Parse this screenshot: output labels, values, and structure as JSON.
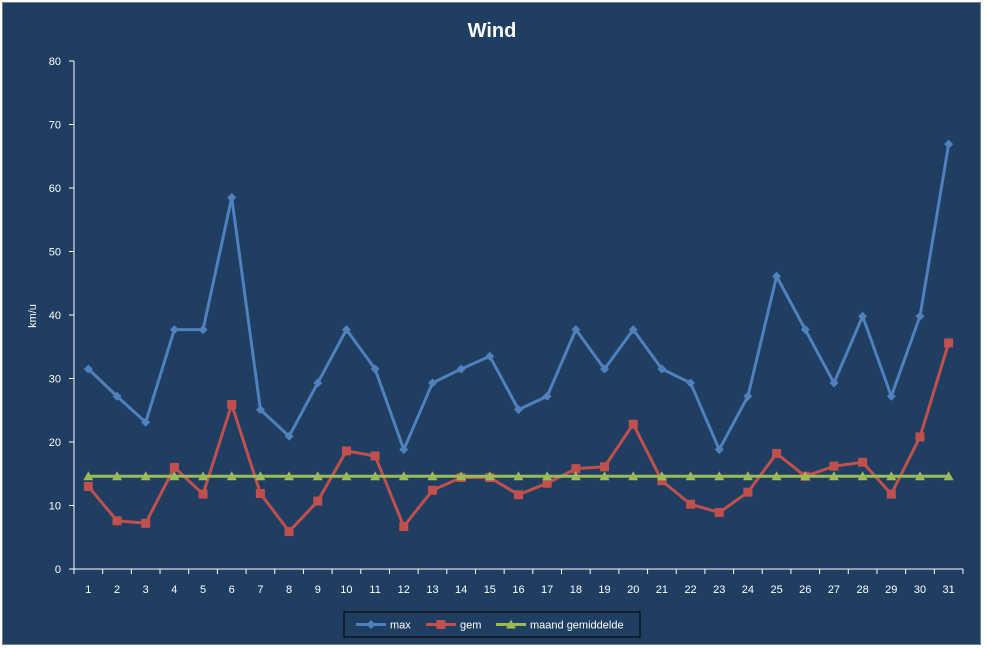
{
  "chart_data": {
    "type": "line",
    "title": "Wind",
    "ylabel": "km/u",
    "xlabel": "",
    "ylim": [
      0,
      80
    ],
    "yticks": [
      0,
      10,
      20,
      30,
      40,
      50,
      60,
      70,
      80
    ],
    "grid": false,
    "legend_position": "bottom",
    "background": "#1f3e61",
    "categories": [
      "1",
      "2",
      "3",
      "4",
      "5",
      "6",
      "7",
      "8",
      "9",
      "10",
      "11",
      "12",
      "13",
      "14",
      "15",
      "16",
      "17",
      "18",
      "19",
      "20",
      "21",
      "22",
      "23",
      "24",
      "25",
      "26",
      "27",
      "28",
      "29",
      "30",
      "31"
    ],
    "series": [
      {
        "name": "max",
        "color": "#4f81bd",
        "marker": "diamond",
        "values": [
          31.5,
          27.2,
          23.1,
          37.7,
          37.7,
          58.5,
          25.1,
          20.9,
          29.3,
          37.7,
          31.5,
          18.8,
          29.3,
          31.5,
          33.5,
          25.1,
          27.2,
          37.7,
          31.5,
          37.7,
          31.5,
          29.3,
          18.8,
          27.2,
          46.1,
          37.7,
          29.3,
          39.8,
          27.2,
          39.8,
          66.9
        ]
      },
      {
        "name": "gem",
        "color": "#c0504d",
        "marker": "square",
        "values": [
          13.0,
          7.6,
          7.2,
          16.0,
          11.8,
          25.9,
          11.9,
          5.9,
          10.7,
          18.6,
          17.8,
          6.7,
          12.4,
          14.4,
          14.4,
          11.7,
          13.5,
          15.8,
          16.1,
          22.8,
          13.9,
          10.2,
          8.9,
          12.1,
          18.2,
          14.6,
          16.2,
          16.8,
          11.8,
          20.8,
          35.6
        ]
      },
      {
        "name": "maand gemiddelde",
        "color": "#9bbb59",
        "marker": "triangle",
        "values": [
          14.6,
          14.6,
          14.6,
          14.6,
          14.6,
          14.6,
          14.6,
          14.6,
          14.6,
          14.6,
          14.6,
          14.6,
          14.6,
          14.6,
          14.6,
          14.6,
          14.6,
          14.6,
          14.6,
          14.6,
          14.6,
          14.6,
          14.6,
          14.6,
          14.6,
          14.6,
          14.6,
          14.6,
          14.6,
          14.6,
          14.6
        ]
      }
    ]
  }
}
